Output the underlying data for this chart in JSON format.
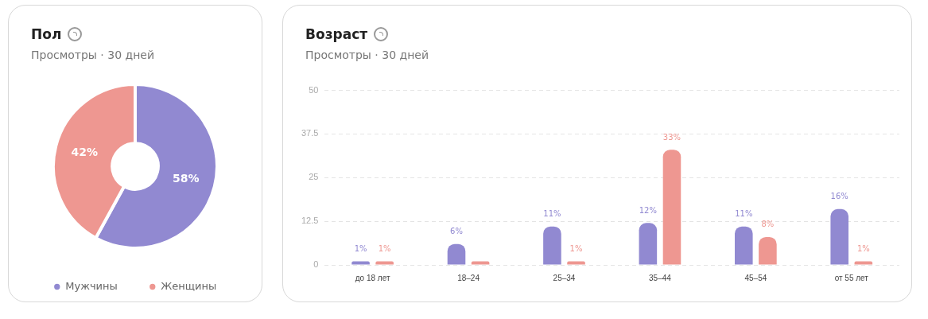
{
  "chart_data": [
    {
      "type": "donut",
      "title": "Пол",
      "subtitle": "Просмотры · 30 дней",
      "categories": [
        "Мужчины",
        "Женщины"
      ],
      "values": [
        58,
        42
      ],
      "colors": [
        "#9189d1",
        "#ee9791"
      ],
      "value_labels": [
        "58%",
        "42%"
      ],
      "legend": "bottom"
    },
    {
      "type": "bar",
      "title": "Возраст",
      "subtitle": "Просмотры · 30 дней",
      "categories": [
        "до 18 лет",
        "18–24",
        "25–34",
        "35–44",
        "45–54",
        "от 55 лет"
      ],
      "series": [
        {
          "color": "#9189d1",
          "values": [
            1,
            6,
            11,
            12,
            11,
            16
          ],
          "value_labels": [
            "1%",
            "6%",
            "11%",
            "12%",
            "11%",
            "16%"
          ]
        },
        {
          "color": "#ee9791",
          "values": [
            1,
            1,
            1,
            33,
            8,
            1
          ],
          "value_labels": [
            "1%",
            null,
            "1%",
            "33%",
            "8%",
            "1%"
          ]
        }
      ],
      "ylim": [
        0,
        50
      ],
      "yticks": [
        0,
        12.5,
        25,
        37.5,
        50
      ],
      "grid": "y",
      "legend": false
    }
  ]
}
